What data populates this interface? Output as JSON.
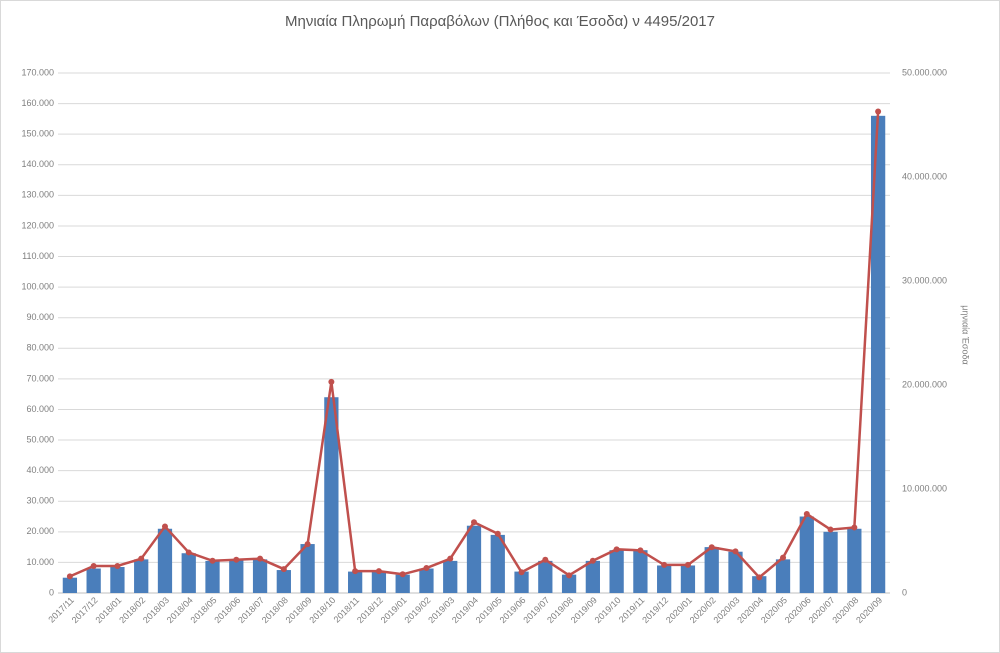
{
  "chart_data": {
    "type": "bar-line",
    "title": "Μηνιαία Πληρωμή Παραβόλων (Πλήθος και Έσοδα) ν 4495/2017",
    "y2label": "μηνιαία Έσοδα",
    "categories": [
      "2017/11",
      "2017/12",
      "2018/01",
      "2018/02",
      "2018/03",
      "2018/04",
      "2018/05",
      "2018/06",
      "2018/07",
      "2018/08",
      "2018/09",
      "2018/10",
      "2018/11",
      "2018/12",
      "2019/01",
      "2019/02",
      "2019/03",
      "2019/04",
      "2019/05",
      "2019/06",
      "2019/07",
      "2019/08",
      "2019/09",
      "2019/10",
      "2019/11",
      "2019/12",
      "2020/01",
      "2020/02",
      "2020/03",
      "2020/04",
      "2020/05",
      "2020/06",
      "2020/07",
      "2020/08",
      "2020/09"
    ],
    "series": [
      {
        "type": "bar",
        "color": "#4a7ebb",
        "values": [
          5000,
          8000,
          8500,
          11000,
          21000,
          13000,
          10500,
          11000,
          11000,
          7500,
          16000,
          64000,
          7000,
          7000,
          6000,
          8000,
          10500,
          22000,
          19000,
          7000,
          10500,
          6000,
          10500,
          14000,
          14000,
          9000,
          9000,
          15000,
          13500,
          5500,
          11000,
          25000,
          20000,
          21000,
          156000
        ]
      },
      {
        "type": "line",
        "axis": "y2",
        "color": "#c0504d",
        "values": [
          1600000,
          2600000,
          2600000,
          3300000,
          6400000,
          3900000,
          3100000,
          3200000,
          3300000,
          2300000,
          4700000,
          20300000,
          2100000,
          2100000,
          1800000,
          2400000,
          3300000,
          6800000,
          5700000,
          2000000,
          3200000,
          1700000,
          3100000,
          4200000,
          4100000,
          2700000,
          2700000,
          4400000,
          4000000,
          1500000,
          3400000,
          7600000,
          6100000,
          6300000,
          46300000
        ]
      }
    ],
    "ylim": [
      0,
      170000
    ],
    "yticks": [
      0,
      {
        "value": 10000,
        "label": "10.000"
      },
      {
        "value": 20000,
        "label": "20.000"
      },
      {
        "value": 30000,
        "label": "30.000"
      },
      {
        "value": 40000,
        "label": "40.000"
      },
      {
        "value": 50000,
        "label": "50.000"
      },
      {
        "value": 60000,
        "label": "60.000"
      },
      {
        "value": 70000,
        "label": "70.000"
      },
      {
        "value": 80000,
        "label": "80.000"
      },
      {
        "value": 90000,
        "label": "90.000"
      },
      {
        "value": 100000,
        "label": "100.000"
      },
      {
        "value": 110000,
        "label": "110.000"
      },
      {
        "value": 120000,
        "label": "120.000"
      },
      {
        "value": 130000,
        "label": "130.000"
      },
      {
        "value": 140000,
        "label": "140.000"
      },
      {
        "value": 150000,
        "label": "150.000"
      },
      {
        "value": 160000,
        "label": "160.000"
      },
      {
        "value": 170000,
        "label": "170.000"
      }
    ],
    "y2lim": [
      0,
      50000000
    ],
    "y2ticks": [
      0,
      {
        "value": 10000000,
        "label": "10.000.000"
      },
      {
        "value": 20000000,
        "label": "20.000.000"
      },
      {
        "value": 30000000,
        "label": "30.000.000"
      },
      {
        "value": 40000000,
        "label": "40.000.000"
      },
      {
        "value": 50000000,
        "label": "50.000.000"
      }
    ],
    "grid": true
  }
}
